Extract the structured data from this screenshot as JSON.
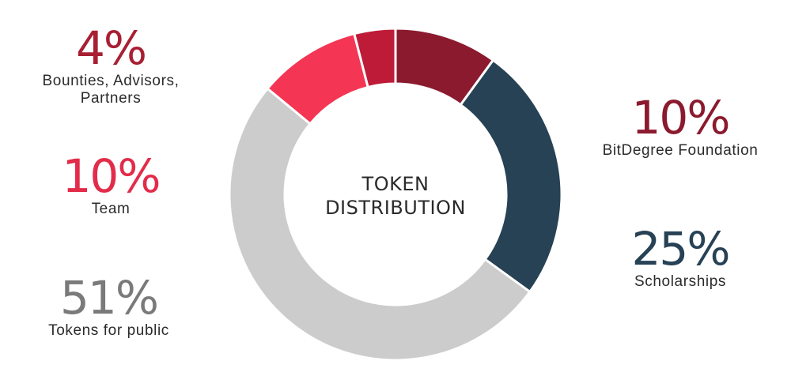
{
  "chart_data": {
    "type": "pie",
    "title": [
      "TOKEN",
      "DISTRIBUTION"
    ],
    "slices": [
      {
        "label": "BitDegree Foundation",
        "pct_label": "10%",
        "value": 10,
        "color": "#8b1a2e"
      },
      {
        "label": "Scholarships",
        "pct_label": "25%",
        "value": 25,
        "color": "#274155"
      },
      {
        "label": "Tokens for public",
        "pct_label": "51%",
        "value": 51,
        "color": "#cccccc"
      },
      {
        "label": "Team",
        "pct_label": "10%",
        "value": 10,
        "color": "#f43554"
      },
      {
        "label": "Bounties, Advisors,\nPartners",
        "pct_label": "4%",
        "value": 4,
        "color": "#be1b38"
      }
    ],
    "label_colors": {
      "BitDegree Foundation": "#8b1a2e",
      "Scholarships": "#274155",
      "Tokens for public": "#7a7a7a",
      "Team": "#e22c4a",
      "Bounties": "#a81f33"
    }
  }
}
